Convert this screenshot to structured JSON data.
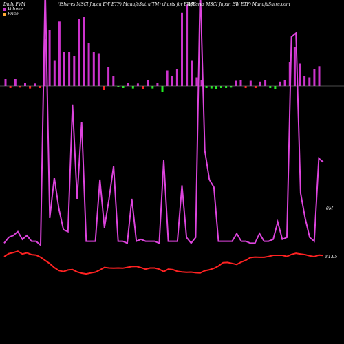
{
  "header": {
    "left": "Daily PVM",
    "center": "(iShares MSCI Japan EW ETF) MunafaSutra(TM) charts for EWJE",
    "right": "(iShares MSCI Japan EW ETF) MunafaSutra.com"
  },
  "legend": [
    {
      "label": "Volume",
      "color": "#cc33cc"
    },
    {
      "label": "Price",
      "color": "#ffaa33"
    }
  ],
  "chart_data": {
    "type": "line",
    "right_labels": {
      "volume": "0M",
      "price": "81.95"
    },
    "colors": {
      "volume_line": "#dd44dd",
      "price_line": "#ff2222",
      "bar_up": "#cc33cc",
      "bar_down": "#ff2222",
      "bar_green": "#22ee22",
      "baseline": "#999999"
    },
    "volume_line": [
      0.07,
      0.1,
      0.11,
      0.13,
      0.09,
      0.11,
      0.08,
      0.08,
      0.06,
      5.0,
      0.2,
      0.41,
      0.25,
      0.14,
      0.13,
      0.79,
      0.3,
      0.7,
      0.08,
      0.08,
      0.08,
      0.4,
      0.15,
      0.3,
      0.47,
      0.08,
      0.08,
      0.07,
      0.3,
      0.08,
      0.09,
      0.08,
      0.08,
      0.08,
      0.07,
      0.5,
      0.08,
      0.08,
      0.08,
      0.37,
      0.1,
      0.07,
      0.1,
      5.0,
      0.55,
      0.4,
      0.36,
      0.08,
      0.08,
      0.08,
      0.08,
      0.12,
      0.08,
      0.08,
      0.07,
      0.07,
      0.12,
      0.08,
      0.08,
      0.09,
      0.18,
      0.09,
      0.1,
      1.14,
      1.16,
      0.33,
      0.2,
      0.1,
      0.08,
      0.51,
      0.49
    ],
    "price_line": [
      82.85,
      83.0,
      83.05,
      83.12,
      82.98,
      83.04,
      82.95,
      82.93,
      82.82,
      82.66,
      82.5,
      82.3,
      82.15,
      82.1,
      82.18,
      82.2,
      82.08,
      82.02,
      81.98,
      82.03,
      82.07,
      82.18,
      82.31,
      82.28,
      82.27,
      82.28,
      82.27,
      82.31,
      82.35,
      82.36,
      82.3,
      82.22,
      82.28,
      82.28,
      82.22,
      82.1,
      82.22,
      82.2,
      82.11,
      82.08,
      82.06,
      82.07,
      82.04,
      82.03,
      82.14,
      82.19,
      82.26,
      82.38,
      82.55,
      82.56,
      82.51,
      82.46,
      82.58,
      82.67,
      82.8,
      82.83,
      82.82,
      82.82,
      82.86,
      82.92,
      82.92,
      82.92,
      82.86,
      82.96,
      83.02,
      82.98,
      82.95,
      82.89,
      82.85,
      82.93,
      82.91
    ],
    "volume_bars": [
      {
        "v": 0.08,
        "c": "up"
      },
      {
        "v": 0.05,
        "c": "down"
      },
      {
        "v": 0.08,
        "c": "up"
      },
      {
        "v": 0.04,
        "c": "down"
      },
      {
        "v": 0.04,
        "c": "up"
      },
      {
        "v": 0.06,
        "c": "down"
      },
      {
        "v": 0.03,
        "c": "up"
      },
      {
        "v": 0.05,
        "c": "down"
      },
      {
        "v": 0.55,
        "c": "up"
      },
      {
        "v": 0.65,
        "c": "up"
      },
      {
        "v": 0.3,
        "c": "up"
      },
      {
        "v": 0.75,
        "c": "up"
      },
      {
        "v": 0.4,
        "c": "up"
      },
      {
        "v": 0.4,
        "c": "up"
      },
      {
        "v": 0.35,
        "c": "up"
      },
      {
        "v": 0.78,
        "c": "up"
      },
      {
        "v": 0.8,
        "c": "up"
      },
      {
        "v": 0.5,
        "c": "up"
      },
      {
        "v": 0.4,
        "c": "up"
      },
      {
        "v": 0.38,
        "c": "up"
      },
      {
        "v": 0.1,
        "c": "down"
      },
      {
        "v": 0.22,
        "c": "up"
      },
      {
        "v": 0.12,
        "c": "up"
      },
      {
        "v": 0.03,
        "c": "green"
      },
      {
        "v": 0.05,
        "c": "green"
      },
      {
        "v": 0.04,
        "c": "up"
      },
      {
        "v": 0.06,
        "c": "green"
      },
      {
        "v": 0.03,
        "c": "up"
      },
      {
        "v": 0.07,
        "c": "down"
      },
      {
        "v": 0.07,
        "c": "up"
      },
      {
        "v": 0.06,
        "c": "green"
      },
      {
        "v": 0.04,
        "c": "up"
      },
      {
        "v": 0.14,
        "c": "green"
      },
      {
        "v": 0.18,
        "c": "up"
      },
      {
        "v": 0.12,
        "c": "up"
      },
      {
        "v": 0.2,
        "c": "up"
      },
      {
        "v": 0.85,
        "c": "up"
      },
      {
        "v": 0.95,
        "c": "up"
      },
      {
        "v": 0.3,
        "c": "up"
      },
      {
        "v": 0.1,
        "c": "up"
      },
      {
        "v": 0.07,
        "c": "up"
      },
      {
        "v": 0.05,
        "c": "green"
      },
      {
        "v": 0.06,
        "c": "green"
      },
      {
        "v": 0.08,
        "c": "green"
      },
      {
        "v": 0.05,
        "c": "green"
      },
      {
        "v": 0.05,
        "c": "green"
      },
      {
        "v": 0.04,
        "c": "green"
      },
      {
        "v": 0.06,
        "c": "up"
      },
      {
        "v": 0.07,
        "c": "up"
      },
      {
        "v": 0.05,
        "c": "down"
      },
      {
        "v": 0.06,
        "c": "up"
      },
      {
        "v": 0.05,
        "c": "down"
      },
      {
        "v": 0.05,
        "c": "up"
      },
      {
        "v": 0.07,
        "c": "up"
      },
      {
        "v": 0.05,
        "c": "green"
      },
      {
        "v": 0.07,
        "c": "green"
      },
      {
        "v": 0.05,
        "c": "up"
      },
      {
        "v": 0.07,
        "c": "up"
      },
      {
        "v": 0.28,
        "c": "up"
      },
      {
        "v": 0.45,
        "c": "up"
      },
      {
        "v": 0.26,
        "c": "up"
      },
      {
        "v": 0.12,
        "c": "up"
      },
      {
        "v": 0.1,
        "c": "up"
      },
      {
        "v": 0.2,
        "c": "up"
      },
      {
        "v": 0.23,
        "c": "up"
      }
    ]
  }
}
